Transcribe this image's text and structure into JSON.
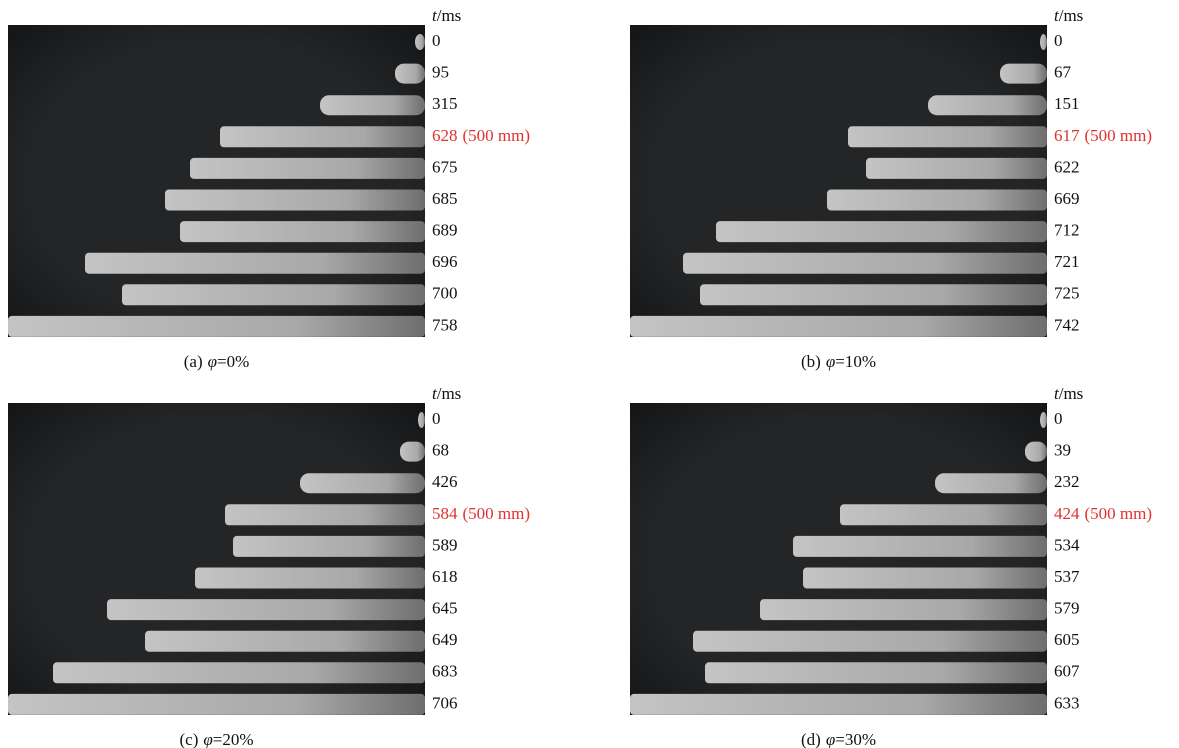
{
  "panels": [
    {
      "unit_var": "t",
      "unit": "/ms",
      "times": [
        0,
        95,
        315,
        {
          "value": 628,
          "note": "(500 mm)"
        },
        675,
        685,
        689,
        696,
        700,
        758
      ],
      "caption": {
        "label": "(a)",
        "symbol": "φ",
        "value": "=0%"
      }
    },
    {
      "unit_var": "t",
      "unit": "/ms",
      "times": [
        0,
        67,
        151,
        {
          "value": 617,
          "note": "(500 mm)"
        },
        622,
        669,
        712,
        721,
        725,
        742
      ],
      "caption": {
        "label": "(b)",
        "symbol": "φ",
        "value": "=10%"
      }
    },
    {
      "unit_var": "t",
      "unit": "/ms",
      "times": [
        0,
        68,
        426,
        {
          "value": 584,
          "note": "(500 mm)"
        },
        589,
        618,
        645,
        649,
        683,
        706
      ],
      "caption": {
        "label": "(c)",
        "symbol": "φ",
        "value": "=20%"
      }
    },
    {
      "unit_var": "t",
      "unit": "/ms",
      "times": [
        0,
        39,
        232,
        {
          "value": 424,
          "note": "(500 mm)"
        },
        534,
        537,
        579,
        605,
        607,
        633
      ],
      "caption": {
        "label": "(d)",
        "symbol": "φ",
        "value": "=30%"
      }
    }
  ]
}
